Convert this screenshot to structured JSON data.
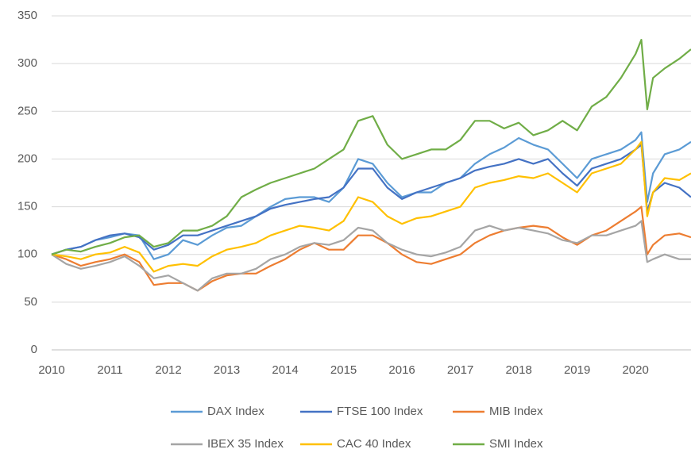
{
  "chart_data": {
    "type": "line",
    "x": [
      2010,
      2010.25,
      2010.5,
      2010.75,
      2011,
      2011.25,
      2011.5,
      2011.75,
      2012,
      2012.25,
      2012.5,
      2012.75,
      2013,
      2013.25,
      2013.5,
      2013.75,
      2014,
      2014.25,
      2014.5,
      2014.75,
      2015,
      2015.25,
      2015.5,
      2015.75,
      2016,
      2016.25,
      2016.5,
      2016.75,
      2017,
      2017.25,
      2017.5,
      2017.75,
      2018,
      2018.25,
      2018.5,
      2018.75,
      2019,
      2019.25,
      2019.5,
      2019.75,
      2020,
      2020.1,
      2020.2,
      2020.3,
      2020.5,
      2020.75,
      2020.95
    ],
    "series": [
      {
        "name": "DAX Index",
        "color": "#5b9bd5",
        "values": [
          100,
          105,
          108,
          115,
          118,
          122,
          120,
          95,
          100,
          115,
          110,
          120,
          128,
          130,
          140,
          150,
          158,
          160,
          160,
          155,
          170,
          200,
          195,
          175,
          160,
          165,
          165,
          175,
          180,
          195,
          205,
          212,
          222,
          215,
          210,
          195,
          180,
          200,
          205,
          210,
          220,
          228,
          155,
          185,
          205,
          210,
          218
        ]
      },
      {
        "name": "FTSE 100 Index",
        "color": "#4472c4",
        "values": [
          100,
          105,
          108,
          115,
          120,
          122,
          118,
          105,
          110,
          120,
          120,
          125,
          130,
          135,
          140,
          148,
          152,
          155,
          158,
          160,
          170,
          190,
          190,
          170,
          158,
          165,
          170,
          175,
          180,
          188,
          192,
          195,
          200,
          195,
          200,
          185,
          172,
          190,
          195,
          200,
          210,
          215,
          145,
          165,
          175,
          170,
          160
        ]
      },
      {
        "name": "MIB Index",
        "color": "#ed7d31",
        "values": [
          100,
          95,
          88,
          92,
          95,
          100,
          92,
          68,
          70,
          70,
          62,
          72,
          78,
          80,
          80,
          88,
          95,
          105,
          112,
          105,
          105,
          120,
          120,
          112,
          100,
          92,
          90,
          95,
          100,
          112,
          120,
          125,
          128,
          130,
          128,
          118,
          110,
          120,
          125,
          135,
          145,
          150,
          100,
          110,
          120,
          122,
          118
        ]
      },
      {
        "name": "IBEX 35 Index",
        "color": "#a5a5a5",
        "values": [
          100,
          90,
          85,
          88,
          92,
          98,
          88,
          75,
          78,
          70,
          62,
          75,
          80,
          80,
          85,
          95,
          100,
          108,
          112,
          110,
          115,
          128,
          125,
          112,
          105,
          100,
          98,
          102,
          108,
          125,
          130,
          125,
          128,
          125,
          122,
          115,
          112,
          120,
          120,
          125,
          130,
          135,
          92,
          95,
          100,
          95,
          95
        ]
      },
      {
        "name": "CAC 40 Index",
        "color": "#ffc000",
        "values": [
          100,
          98,
          95,
          100,
          102,
          108,
          102,
          82,
          88,
          90,
          88,
          98,
          105,
          108,
          112,
          120,
          125,
          130,
          128,
          125,
          135,
          160,
          155,
          140,
          132,
          138,
          140,
          145,
          150,
          170,
          175,
          178,
          182,
          180,
          185,
          175,
          165,
          185,
          190,
          195,
          210,
          218,
          140,
          165,
          180,
          178,
          185
        ]
      },
      {
        "name": "SMI Index",
        "color": "#70ad47",
        "values": [
          100,
          105,
          103,
          108,
          112,
          118,
          120,
          108,
          112,
          125,
          125,
          130,
          140,
          160,
          168,
          175,
          180,
          185,
          190,
          200,
          210,
          240,
          245,
          215,
          200,
          205,
          210,
          210,
          220,
          240,
          240,
          232,
          238,
          225,
          230,
          240,
          230,
          255,
          265,
          285,
          310,
          325,
          252,
          285,
          295,
          305,
          315
        ]
      }
    ],
    "xlim": [
      2010,
      2020.95
    ],
    "xticks": [
      2010,
      2011,
      2012,
      2013,
      2014,
      2015,
      2016,
      2017,
      2018,
      2019,
      2020
    ],
    "ylim": [
      0,
      350
    ],
    "yticks": [
      0,
      50,
      100,
      150,
      200,
      250,
      300,
      350
    ],
    "grid": true,
    "legend": "bottom"
  }
}
